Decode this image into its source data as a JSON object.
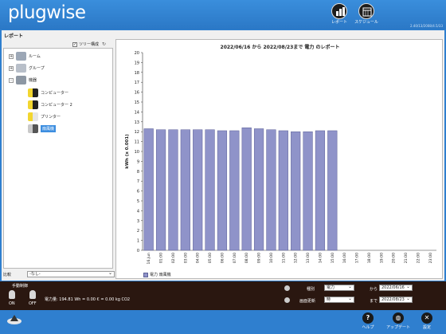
{
  "app": {
    "logo": "plugwise",
    "version": "2.40/13/2008/4.5/33"
  },
  "header": {
    "buttons": [
      {
        "label": "レポート",
        "icon": "report-icon"
      },
      {
        "label": "スケジュール",
        "icon": "schedule-icon"
      }
    ]
  },
  "sidebar": {
    "section_title": "レポート",
    "tree_toggle": {
      "label": "ツリー構成",
      "checked": true
    },
    "items": [
      {
        "label": "ルーム",
        "expander": "+",
        "icon": "room-icon"
      },
      {
        "label": "グループ",
        "expander": "+",
        "icon": "group-icon"
      },
      {
        "label": "機器",
        "expander": "-",
        "icon": "devices-icon"
      },
      {
        "label": "コンピューター",
        "icon": "computer-icon"
      },
      {
        "label": "コンピューター 2",
        "icon": "computer-icon"
      },
      {
        "label": "プリンター",
        "icon": "printer-icon"
      },
      {
        "label": "扇風機",
        "icon": "fan-icon",
        "selected": true
      }
    ],
    "compare_label": "比較",
    "compare_value": "-なし-"
  },
  "chart_data": {
    "type": "bar",
    "title": "2022/06/16 から 2022/08/23まで 電力 のレポート",
    "ylabel": "kWh (x 0.001)",
    "xlabel": "",
    "ylim": [
      0,
      20
    ],
    "yticks": [
      0,
      1,
      2,
      3,
      4,
      5,
      6,
      7,
      8,
      9,
      10,
      11,
      12,
      13,
      14,
      15,
      16,
      17,
      18,
      19,
      20
    ],
    "grid": false,
    "legend_position": "bottom-left",
    "categories": [
      "16.Jun",
      "01:00",
      "02:00",
      "03:00",
      "04:00",
      "05:00",
      "06:00",
      "07:00",
      "08:00",
      "09:00",
      "10:00",
      "11:00",
      "12:00",
      "13:00",
      "14:00",
      "15:00",
      "16:00",
      "17:00",
      "18:00",
      "19:00",
      "20:00",
      "21:00",
      "22:00",
      "23:00"
    ],
    "series": [
      {
        "name": "電力 扇風機",
        "values": [
          12.3,
          12.2,
          12.2,
          12.2,
          12.2,
          12.2,
          12.1,
          12.1,
          12.4,
          12.3,
          12.2,
          12.1,
          12.0,
          12.0,
          12.1,
          12.1,
          null,
          null,
          null,
          null,
          null,
          null,
          null,
          null
        ]
      }
    ],
    "bar_color": "#8f93c9"
  },
  "footer": {
    "manual_control": "手動制御",
    "on_label": "ON",
    "off_label": "OFF",
    "energy_text": "電力量: 194.81 Wh = 0.00 € = 0.00 kg CO2",
    "type_label": "種別",
    "type_value": "電力",
    "refresh_label": "画面更新",
    "refresh_value": "時",
    "from_label": "から",
    "from_value": "2022/06/16",
    "to_label": "まで",
    "to_value": "2022/08/23"
  },
  "bottom": {
    "buttons": [
      {
        "label": "ヘルプ",
        "glyph": "?"
      },
      {
        "label": "アップデート",
        "glyph": "◍"
      },
      {
        "label": "設定",
        "glyph": "✕"
      }
    ]
  }
}
